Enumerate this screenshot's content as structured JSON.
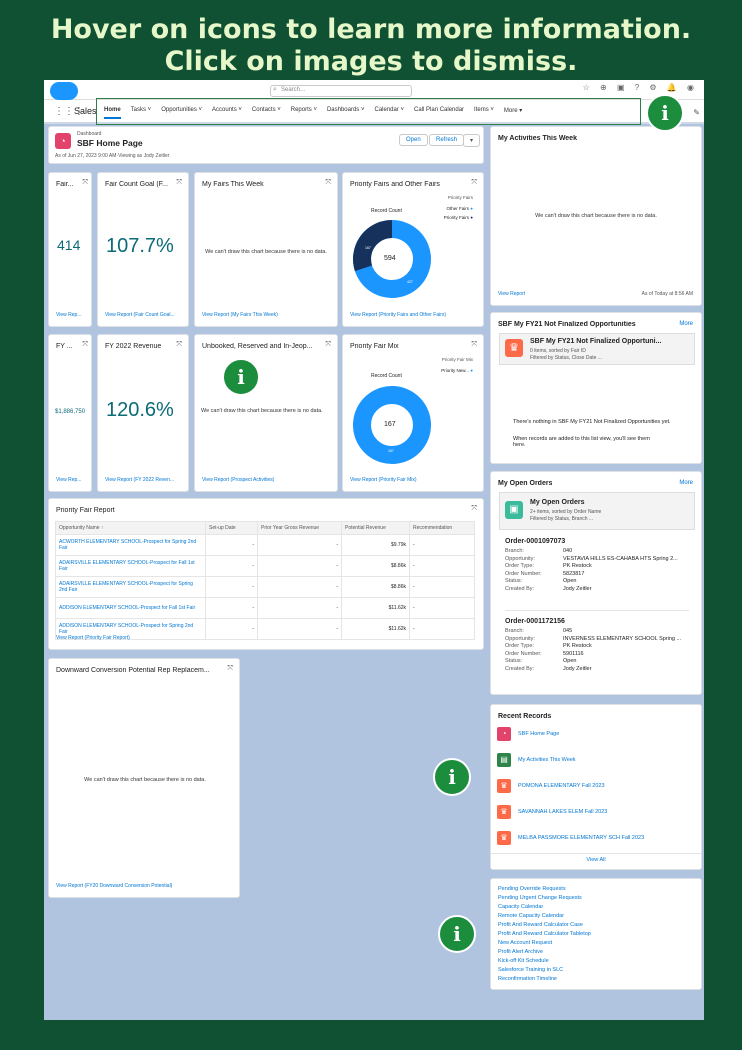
{
  "banner": {
    "line1": "Hover on icons to learn more information.",
    "line2": "Click on images to dismiss."
  },
  "topbar": {
    "search_placeholder": "Search..."
  },
  "nav": {
    "app_name": "Sales",
    "items": [
      "Home",
      "Tasks ˅",
      "Opportunities ˅",
      "Accounts ˅",
      "Contacts ˅",
      "Reports ˅",
      "Dashboards ˅",
      "Calendar ˅",
      "Call Plan Calendar",
      "Items ˅",
      "More ▾"
    ]
  },
  "dashboard": {
    "label": "Dashboard",
    "title": "SBF Home Page",
    "subtitle": "As of Jun 27, 2023 9:00 AM·Viewing as Jody Zeitler",
    "open_btn": "Open",
    "refresh_btn": "Refresh"
  },
  "cards": {
    "fair": {
      "title": "Fair...",
      "value": "414",
      "link": "View Rep..."
    },
    "fair_goal": {
      "title": "Fair Count Goal (F...",
      "value": "107.7%",
      "link": "View Report (Fair Count Goal..."
    },
    "my_fairs": {
      "title": "My Fairs This Week",
      "nodata": "We can't draw this chart because there is no data.",
      "link": "View Report (My Fairs This Week)"
    },
    "priority": {
      "title": "Priority Fairs and Other Fairs",
      "legend_title": "Priority Fairs",
      "legend1": "Other Fairs",
      "legend2": "Priority Fairs",
      "record": "Record Count",
      "center": "594",
      "seg_a": "167",
      "seg_b": "427",
      "link": "View Report (Priority Fairs and Other Fairs)"
    },
    "fy": {
      "title": "FY ...",
      "value": "$1,886,750",
      "link": "View Rep..."
    },
    "fy_rev": {
      "title": "FY 2022 Revenue",
      "value": "120.6%",
      "link": "View Report (FY 2022 Reven..."
    },
    "unbooked": {
      "title": "Unbooked, Reserved and In-Jeop...",
      "nodata": "We can't draw this chart because there is no data.",
      "link": "View Report (Prospect Activities)"
    },
    "mix": {
      "title": "Priority Fair Mix",
      "legend_title": "Priority Fair Mix",
      "legend1": "Priority New...",
      "record": "Record Count",
      "center": "167",
      "seg": "167",
      "link": "View Report (Priority Fair Mix)"
    }
  },
  "report": {
    "title": "Priority Fair Report",
    "headers": [
      "Opportunity Name ↑",
      "Set-up Date",
      "Prior Year Gross Revenue",
      "Potential Revenue",
      "Recommendation"
    ],
    "rows": [
      [
        "ACWORTH ELEMENTARY SCHOOL-Prospect for Spring 2nd Fair",
        "-",
        "-",
        "$9.79k",
        "-"
      ],
      [
        "ADAIRSVILLE ELEMENTARY SCHOOL-Prospect for Fall 1st Fair",
        "-",
        "-",
        "$8.86k",
        "-"
      ],
      [
        "ADAIRSVILLE ELEMENTARY SCHOOL-Prospect for Spring 2nd Fair",
        "-",
        "-",
        "$8.86k",
        "-"
      ],
      [
        "ADDISON ELEMENTARY SCHOOL-Prospect for Fall 1st Fair",
        "-",
        "-",
        "$11.62k",
        "-"
      ],
      [
        "ADDISON ELEMENTARY SCHOOL-Prospect for Spring 2nd Fair",
        "-",
        "-",
        "$11.62k",
        "-"
      ]
    ],
    "link": "View Report (Priority Fair Report)"
  },
  "downward": {
    "title": "Downward Conversion Potential Rep Replacem...",
    "nodata": "We can't draw this chart because there is no data.",
    "link": "View Report (FY20 Downward Conversion Potential)"
  },
  "activities": {
    "title": "My Activities This Week",
    "nodata": "We can't draw this chart because there is no data.",
    "link": "View Report",
    "asof": "As of Today at 8:56 AM"
  },
  "fy21": {
    "title": "SBF My FY21 Not Finalized Opportunities",
    "more": "More",
    "box_title": "SBF My FY21 Not Finalized Opportuni...",
    "box_sub1": "0 items, sorted by Fair ID",
    "box_sub2": "Filtered by Status, Close Date ...",
    "empty1": "There's nothing in SBF My FY21 Not Finalized Opportunities yet.",
    "empty2": "When records are added to this list view, you'll see them here."
  },
  "orders": {
    "title": "My Open Orders",
    "more": "More",
    "box_title": "My Open Orders",
    "box_sub1": "2+ items, sorted by Order Name",
    "box_sub2": "Filtered by Status, Branch ...",
    "labels": [
      "Branch:",
      "Opportunity:",
      "Order Type:",
      "Order Number:",
      "Status:",
      "Created By:"
    ],
    "o1": {
      "name": "Order-0001097073",
      "values": [
        "040",
        "VESTAVIA HILLS ES-CAHABA HTS Spring 2...",
        "PK Restock",
        "5823817",
        "Open",
        "Jody Zeitler"
      ]
    },
    "o2": {
      "name": "Order-0001172156",
      "values": [
        "045",
        "INVERNESS ELEMENTARY SCHOOL Spring ...",
        "PK Restock",
        "5901116",
        "Open",
        "Jody Zeitler"
      ]
    }
  },
  "recent": {
    "title": "Recent Records",
    "items": [
      "SBF Home Page",
      "My Activities This Week",
      "POMONA ELEMENTARY Fall 2023",
      "SAVANNAH LAKES ELEM Fall 2023",
      "MELBA PASSMORE ELEMENTARY SCH Fall 2023"
    ],
    "view_all": "View All"
  },
  "links": [
    "Pending Override Requests",
    "Pending Urgent Change Requests",
    "Capacity Calendar",
    "Remote Capacity Calendar",
    "Profit And Reward Calculator Case",
    "Profit And Reward Calculator Tabletop",
    "New Account Request",
    "Profit Alert Archive",
    "Kick-off Kit Schedule",
    "Salesforce Training in SLC",
    "Reconfirmation Timeline"
  ],
  "info_icon": "i",
  "colors": {
    "dark_blue": "#16325c",
    "light_blue": "#1b96ff",
    "accent": "#0176d3",
    "bg_green": "#0f5132",
    "info_green": "#1c8d3d"
  }
}
